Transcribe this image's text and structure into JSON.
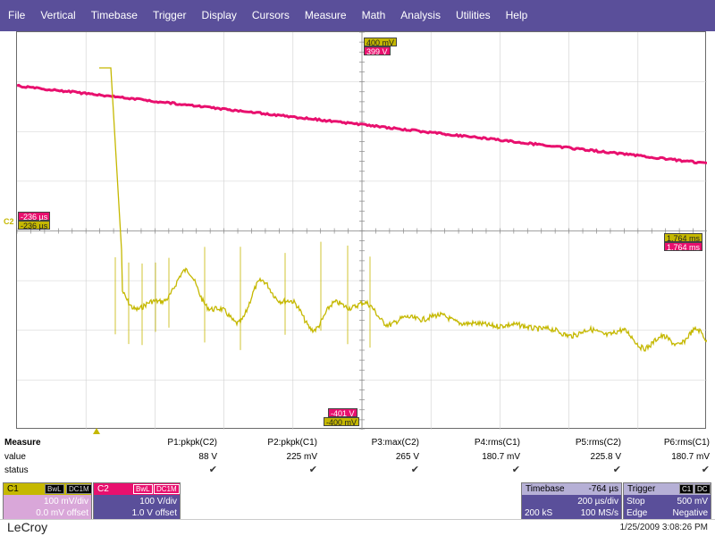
{
  "menu": [
    "File",
    "Vertical",
    "Timebase",
    "Trigger",
    "Display",
    "Cursors",
    "Measure",
    "Math",
    "Analysis",
    "Utilities",
    "Help"
  ],
  "colors": {
    "menubar": "#5a4f9a",
    "c1": "#c5b800",
    "c2": "#e8106e",
    "grid": "#6b6b6b"
  },
  "markers": {
    "top_c1": "400 mV",
    "top_c2": "399 V",
    "left_c2": "-236 µs",
    "left_c1": "-236 µs",
    "right_c1": "1.764 ms",
    "right_c2": "1.764 ms",
    "bottom_c2": "-401 V",
    "bottom_c1": "-400 mV",
    "channel_tag": "C2"
  },
  "measure": {
    "title": "Measure",
    "row_value": "value",
    "row_status": "status",
    "params": [
      {
        "name": "P1:pkpk(C2)",
        "value": "88 V"
      },
      {
        "name": "P2:pkpk(C1)",
        "value": "225 mV"
      },
      {
        "name": "P3:max(C2)",
        "value": "265 V"
      },
      {
        "name": "P4:rms(C1)",
        "value": "180.7 mV"
      },
      {
        "name": "P5:rms(C2)",
        "value": "225.8 V"
      },
      {
        "name": "P6:rms(C1)",
        "value": "180.7 mV"
      }
    ]
  },
  "c1_panel": {
    "label": "C1",
    "tag1": "BwL",
    "tag2": "DC1M",
    "scale": "100 mV/div",
    "offset": "0.0 mV offset"
  },
  "c2_panel": {
    "label": "C2",
    "tag1": "BwL",
    "tag2": "DC1M",
    "scale": "100 V/div",
    "offset": "1.0 V offset"
  },
  "timebase": {
    "label": "Timebase",
    "delay": "-764 µs",
    "scale": "200 µs/div",
    "samples": "200 kS",
    "rate": "100 MS/s"
  },
  "trigger": {
    "label": "Trigger",
    "tag1": "C1",
    "tag2": "DC",
    "mode": "Stop",
    "level": "500 mV",
    "type": "Edge",
    "slope": "Negative"
  },
  "footer": {
    "brand": "LeCroy",
    "datetime": "1/25/2009 3:08:26 PM"
  }
}
